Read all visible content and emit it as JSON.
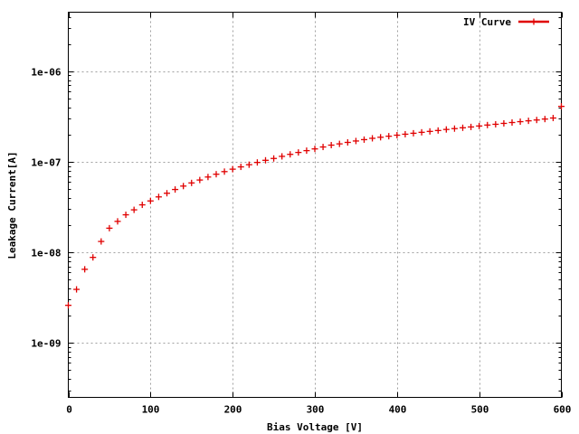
{
  "chart_data": {
    "type": "scatter",
    "xlabel": "Bias Voltage [V]",
    "ylabel": "Leakage Current[A]",
    "xlim": [
      0,
      600
    ],
    "ylim": [
      2.5e-10,
      4.5e-06
    ],
    "y_scale": "log",
    "grid": true,
    "legend_position": "top-right",
    "x_ticks": [
      0,
      100,
      200,
      300,
      400,
      500,
      600
    ],
    "x_tick_labels": [
      "0",
      "100",
      "200",
      "300",
      "400",
      "500",
      "600"
    ],
    "y_ticks": [
      1e-09,
      1e-08,
      1e-07,
      1e-06
    ],
    "y_tick_labels": [
      "1e-09",
      "1e-08",
      "1e-07",
      "1e-06"
    ],
    "series": [
      {
        "name": "IV Curve",
        "color": "#e00000",
        "marker": "plus",
        "x": [
          0,
          10,
          20,
          30,
          40,
          50,
          60,
          70,
          80,
          90,
          100,
          110,
          120,
          130,
          140,
          150,
          160,
          170,
          180,
          190,
          200,
          210,
          220,
          230,
          240,
          250,
          260,
          270,
          280,
          290,
          300,
          310,
          320,
          330,
          340,
          350,
          360,
          370,
          380,
          390,
          400,
          410,
          420,
          430,
          440,
          450,
          460,
          470,
          480,
          490,
          500,
          510,
          520,
          530,
          540,
          550,
          560,
          570,
          580,
          590,
          600
        ],
        "y": [
          2.6e-09,
          3.9e-09,
          6.5e-09,
          8.8e-09,
          1.32e-08,
          1.85e-08,
          2.2e-08,
          2.6e-08,
          2.95e-08,
          3.35e-08,
          3.7e-08,
          4.1e-08,
          4.5e-08,
          4.95e-08,
          5.4e-08,
          5.85e-08,
          6.3e-08,
          6.8e-08,
          7.3e-08,
          7.8e-08,
          8.3e-08,
          8.8e-08,
          9.3e-08,
          9.85e-08,
          1.04e-07,
          1.09e-07,
          1.15e-07,
          1.21e-07,
          1.27e-07,
          1.33e-07,
          1.39e-07,
          1.46e-07,
          1.53e-07,
          1.58e-07,
          1.64e-07,
          1.7e-07,
          1.76e-07,
          1.82e-07,
          1.87e-07,
          1.92e-07,
          1.97e-07,
          2.02e-07,
          2.07e-07,
          2.12e-07,
          2.17e-07,
          2.22e-07,
          2.28e-07,
          2.33e-07,
          2.38e-07,
          2.43e-07,
          2.49e-07,
          2.55e-07,
          2.6e-07,
          2.66e-07,
          2.72e-07,
          2.78e-07,
          2.84e-07,
          2.9e-07,
          2.97e-07,
          3.05e-07,
          4.1e-07
        ]
      }
    ]
  }
}
